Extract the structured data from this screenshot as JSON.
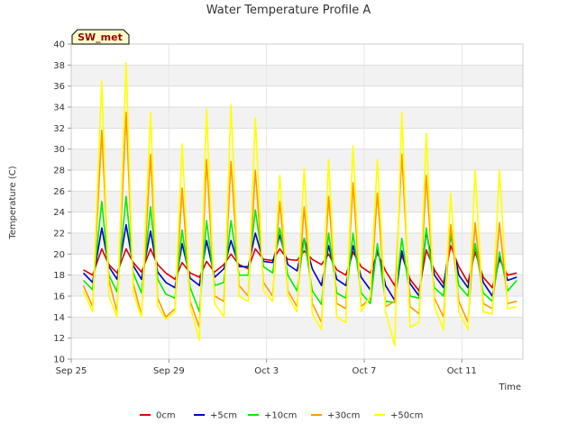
{
  "chart_data": {
    "type": "line",
    "title": "Water Temperature Profile A",
    "site_label": "SW_met",
    "xlabel": "Time",
    "ylabel": "Temperature (C)",
    "ylim": [
      10,
      40
    ],
    "yticks": [
      10,
      12,
      14,
      16,
      18,
      20,
      22,
      24,
      26,
      28,
      30,
      32,
      34,
      36,
      38,
      40
    ],
    "xlim": [
      "2018-09-25",
      "2018-10-13T12:00"
    ],
    "xticks": [
      {
        "label": "Sep 25",
        "date": "2018-09-25"
      },
      {
        "label": "Sep 29",
        "date": "2018-09-29"
      },
      {
        "label": "Oct 3",
        "date": "2018-10-03"
      },
      {
        "label": "Oct 7",
        "date": "2018-10-07"
      },
      {
        "label": "Oct 11",
        "date": "2018-10-11"
      }
    ],
    "grid": true,
    "legend_position": "bottom",
    "series": [
      {
        "name": "0cm",
        "color": "#dd0000",
        "x": [
          "2018-09-25T12:00",
          "2018-09-25T21:00",
          "2018-09-26T06:00",
          "2018-09-26T13:00",
          "2018-09-26T21:00",
          "2018-09-27T06:00",
          "2018-09-27T13:00",
          "2018-09-27T21:00",
          "2018-09-28T06:00",
          "2018-09-28T13:00",
          "2018-09-28T21:00",
          "2018-09-29T06:00",
          "2018-09-29T13:00",
          "2018-09-29T21:00",
          "2018-09-30T06:00",
          "2018-09-30T13:00",
          "2018-09-30T21:00",
          "2018-10-01T06:00",
          "2018-10-01T13:00",
          "2018-10-01T21:00",
          "2018-10-02T06:00",
          "2018-10-02T13:00",
          "2018-10-02T21:00",
          "2018-10-03T06:00",
          "2018-10-03T13:00",
          "2018-10-03T21:00",
          "2018-10-04T06:00",
          "2018-10-04T13:00",
          "2018-10-04T21:00",
          "2018-10-05T06:00",
          "2018-10-05T13:00",
          "2018-10-05T21:00",
          "2018-10-06T06:00",
          "2018-10-06T13:00",
          "2018-10-06T21:00",
          "2018-10-07T06:00",
          "2018-10-07T13:00",
          "2018-10-07T21:00",
          "2018-10-08T06:00",
          "2018-10-08T13:00",
          "2018-10-08T21:00",
          "2018-10-09T06:00",
          "2018-10-09T13:00",
          "2018-10-09T21:00",
          "2018-10-10T06:00",
          "2018-10-10T13:00",
          "2018-10-10T21:00",
          "2018-10-11T06:00",
          "2018-10-11T13:00",
          "2018-10-11T21:00",
          "2018-10-12T06:00",
          "2018-10-12T13:00",
          "2018-10-12T21:00",
          "2018-10-13T06:00"
        ],
        "values": [
          18.5,
          18.0,
          20.5,
          19.0,
          18.2,
          20.5,
          19.2,
          18.3,
          20.5,
          19.0,
          18.2,
          17.6,
          19.2,
          18.2,
          17.8,
          19.3,
          18.3,
          19.0,
          20.0,
          19.0,
          18.6,
          20.5,
          19.5,
          19.4,
          20.5,
          19.5,
          19.4,
          20.3,
          19.5,
          19.0,
          20.0,
          18.5,
          18.0,
          20.2,
          18.8,
          18.2,
          20.1,
          18.4,
          17.0,
          19.9,
          17.6,
          16.5,
          20.4,
          18.5,
          17.2,
          20.8,
          18.8,
          17.3,
          20.2,
          17.8,
          16.8,
          19.5,
          18.0,
          18.2
        ]
      },
      {
        "name": "+5cm",
        "color": "#0000cc",
        "x": [
          "2018-09-25T12:00",
          "2018-09-25T21:00",
          "2018-09-26T06:00",
          "2018-09-26T13:00",
          "2018-09-26T21:00",
          "2018-09-27T06:00",
          "2018-09-27T13:00",
          "2018-09-27T21:00",
          "2018-09-28T06:00",
          "2018-09-28T13:00",
          "2018-09-28T21:00",
          "2018-09-29T06:00",
          "2018-09-29T13:00",
          "2018-09-29T21:00",
          "2018-09-30T06:00",
          "2018-09-30T13:00",
          "2018-09-30T21:00",
          "2018-10-01T06:00",
          "2018-10-01T13:00",
          "2018-10-01T21:00",
          "2018-10-02T06:00",
          "2018-10-02T13:00",
          "2018-10-02T21:00",
          "2018-10-03T06:00",
          "2018-10-03T13:00",
          "2018-10-03T21:00",
          "2018-10-04T06:00",
          "2018-10-04T13:00",
          "2018-10-04T21:00",
          "2018-10-05T06:00",
          "2018-10-05T13:00",
          "2018-10-05T21:00",
          "2018-10-06T06:00",
          "2018-10-06T13:00",
          "2018-10-06T21:00",
          "2018-10-07T06:00",
          "2018-10-07T13:00",
          "2018-10-07T21:00",
          "2018-10-08T06:00",
          "2018-10-08T13:00",
          "2018-10-08T21:00",
          "2018-10-09T06:00",
          "2018-10-09T13:00",
          "2018-10-09T21:00",
          "2018-10-10T06:00",
          "2018-10-10T13:00",
          "2018-10-10T21:00",
          "2018-10-11T06:00",
          "2018-10-11T13:00",
          "2018-10-11T21:00",
          "2018-10-12T06:00",
          "2018-10-12T13:00",
          "2018-10-12T21:00",
          "2018-10-13T06:00"
        ],
        "values": [
          18.2,
          17.3,
          22.5,
          18.8,
          17.6,
          22.8,
          18.9,
          17.6,
          22.2,
          18.3,
          17.3,
          16.8,
          21.0,
          17.7,
          17.0,
          21.3,
          17.8,
          18.6,
          21.3,
          18.8,
          18.8,
          22.0,
          19.3,
          19.2,
          21.8,
          19.0,
          18.4,
          21.5,
          18.6,
          17.0,
          20.8,
          17.6,
          17.0,
          20.8,
          17.8,
          16.6,
          20.6,
          17.0,
          15.6,
          20.3,
          17.2,
          16.0,
          22.2,
          18.0,
          16.8,
          21.8,
          18.0,
          16.8,
          20.8,
          17.3,
          16.0,
          19.8,
          17.5,
          17.8
        ]
      },
      {
        "name": "+10cm",
        "color": "#00ee00",
        "x": [
          "2018-09-25T12:00",
          "2018-09-25T21:00",
          "2018-09-26T06:00",
          "2018-09-26T13:00",
          "2018-09-26T21:00",
          "2018-09-27T06:00",
          "2018-09-27T13:00",
          "2018-09-27T21:00",
          "2018-09-28T06:00",
          "2018-09-28T13:00",
          "2018-09-28T21:00",
          "2018-09-29T06:00",
          "2018-09-29T13:00",
          "2018-09-29T21:00",
          "2018-09-30T06:00",
          "2018-09-30T13:00",
          "2018-09-30T21:00",
          "2018-10-01T06:00",
          "2018-10-01T13:00",
          "2018-10-01T21:00",
          "2018-10-02T06:00",
          "2018-10-02T13:00",
          "2018-10-02T21:00",
          "2018-10-03T06:00",
          "2018-10-03T13:00",
          "2018-10-03T21:00",
          "2018-10-04T06:00",
          "2018-10-04T13:00",
          "2018-10-04T21:00",
          "2018-10-05T06:00",
          "2018-10-05T13:00",
          "2018-10-05T21:00",
          "2018-10-06T06:00",
          "2018-10-06T13:00",
          "2018-10-06T21:00",
          "2018-10-07T06:00",
          "2018-10-07T13:00",
          "2018-10-07T21:00",
          "2018-10-08T06:00",
          "2018-10-08T13:00",
          "2018-10-08T21:00",
          "2018-10-09T06:00",
          "2018-10-09T13:00",
          "2018-10-09T21:00",
          "2018-10-10T06:00",
          "2018-10-10T13:00",
          "2018-10-10T21:00",
          "2018-10-11T06:00",
          "2018-10-11T13:00",
          "2018-10-11T21:00",
          "2018-10-12T06:00",
          "2018-10-12T13:00",
          "2018-10-12T21:00",
          "2018-10-13T06:00"
        ],
        "values": [
          17.5,
          16.6,
          25.0,
          18.0,
          16.4,
          25.5,
          18.2,
          16.3,
          24.5,
          17.6,
          16.2,
          15.8,
          22.3,
          16.8,
          14.5,
          23.2,
          17.0,
          17.3,
          23.2,
          18.0,
          18.0,
          24.2,
          18.8,
          18.2,
          22.5,
          18.0,
          16.5,
          21.5,
          16.5,
          15.2,
          22.0,
          16.3,
          15.8,
          22.0,
          16.3,
          15.3,
          21.0,
          15.5,
          15.4,
          21.5,
          16.0,
          15.8,
          22.5,
          16.8,
          16.0,
          22.0,
          17.0,
          16.0,
          21.0,
          16.3,
          15.5,
          20.2,
          16.5,
          17.5
        ]
      },
      {
        "name": "+30cm",
        "color": "#ff9900",
        "x": [
          "2018-09-25T12:00",
          "2018-09-25T21:00",
          "2018-09-26T06:00",
          "2018-09-26T13:00",
          "2018-09-26T21:00",
          "2018-09-27T06:00",
          "2018-09-27T13:00",
          "2018-09-27T21:00",
          "2018-09-28T06:00",
          "2018-09-28T13:00",
          "2018-09-28T21:00",
          "2018-09-29T06:00",
          "2018-09-29T13:00",
          "2018-09-29T21:00",
          "2018-09-30T06:00",
          "2018-09-30T13:00",
          "2018-09-30T21:00",
          "2018-10-01T06:00",
          "2018-10-01T13:00",
          "2018-10-01T21:00",
          "2018-10-02T06:00",
          "2018-10-02T13:00",
          "2018-10-02T21:00",
          "2018-10-03T06:00",
          "2018-10-03T13:00",
          "2018-10-03T21:00",
          "2018-10-04T06:00",
          "2018-10-04T13:00",
          "2018-10-04T21:00",
          "2018-10-05T06:00",
          "2018-10-05T13:00",
          "2018-10-05T21:00",
          "2018-10-06T06:00",
          "2018-10-06T13:00",
          "2018-10-06T21:00",
          "2018-10-07T06:00",
          "2018-10-07T13:00",
          "2018-10-07T21:00",
          "2018-10-08T06:00",
          "2018-10-08T13:00",
          "2018-10-08T21:00",
          "2018-10-09T06:00",
          "2018-10-09T13:00",
          "2018-10-09T21:00",
          "2018-10-10T06:00",
          "2018-10-10T13:00",
          "2018-10-10T21:00",
          "2018-10-11T06:00",
          "2018-10-11T13:00",
          "2018-10-11T21:00",
          "2018-10-12T06:00",
          "2018-10-12T13:00",
          "2018-10-12T21:00",
          "2018-10-13T06:00"
        ],
        "values": [
          17.0,
          15.0,
          31.8,
          17.5,
          14.5,
          33.5,
          17.2,
          14.2,
          29.5,
          15.8,
          14.0,
          14.8,
          26.3,
          15.5,
          13.0,
          29.0,
          16.0,
          15.5,
          28.8,
          17.0,
          16.0,
          28.0,
          17.3,
          16.0,
          25.0,
          16.5,
          15.0,
          24.5,
          15.3,
          13.5,
          25.5,
          15.3,
          14.8,
          26.8,
          15.0,
          15.8,
          25.8,
          15.0,
          15.5,
          29.5,
          15.0,
          14.3,
          27.5,
          15.8,
          14.0,
          22.8,
          15.5,
          13.5,
          23.0,
          15.3,
          14.8,
          23.0,
          15.3,
          15.5
        ]
      },
      {
        "name": "+50cm",
        "color": "#ffff00",
        "x": [
          "2018-09-25T12:00",
          "2018-09-25T21:00",
          "2018-09-26T06:00",
          "2018-09-26T13:00",
          "2018-09-26T21:00",
          "2018-09-27T06:00",
          "2018-09-27T13:00",
          "2018-09-27T21:00",
          "2018-09-28T06:00",
          "2018-09-28T13:00",
          "2018-09-28T21:00",
          "2018-09-29T06:00",
          "2018-09-29T13:00",
          "2018-09-29T21:00",
          "2018-09-30T06:00",
          "2018-09-30T13:00",
          "2018-09-30T21:00",
          "2018-10-01T06:00",
          "2018-10-01T13:00",
          "2018-10-01T21:00",
          "2018-10-02T06:00",
          "2018-10-02T13:00",
          "2018-10-02T21:00",
          "2018-10-03T06:00",
          "2018-10-03T13:00",
          "2018-10-03T21:00",
          "2018-10-04T06:00",
          "2018-10-04T13:00",
          "2018-10-04T21:00",
          "2018-10-05T06:00",
          "2018-10-05T13:00",
          "2018-10-05T21:00",
          "2018-10-06T06:00",
          "2018-10-06T13:00",
          "2018-10-06T21:00",
          "2018-10-07T06:00",
          "2018-10-07T13:00",
          "2018-10-07T21:00",
          "2018-10-08T06:00",
          "2018-10-08T13:00",
          "2018-10-08T21:00",
          "2018-10-09T06:00",
          "2018-10-09T13:00",
          "2018-10-09T21:00",
          "2018-10-10T06:00",
          "2018-10-10T13:00",
          "2018-10-10T21:00",
          "2018-10-11T06:00",
          "2018-10-11T13:00",
          "2018-10-11T21:00",
          "2018-10-12T06:00",
          "2018-10-12T13:00",
          "2018-10-12T21:00",
          "2018-10-13T06:00"
        ],
        "values": [
          16.5,
          14.5,
          36.5,
          16.0,
          14.0,
          38.2,
          16.3,
          14.0,
          33.5,
          15.0,
          13.8,
          14.5,
          30.5,
          15.0,
          11.8,
          33.8,
          15.3,
          14.0,
          34.2,
          16.0,
          15.5,
          33.0,
          16.5,
          15.5,
          27.5,
          16.0,
          14.5,
          28.2,
          14.3,
          12.8,
          29.0,
          14.0,
          13.5,
          30.3,
          14.5,
          16.0,
          29.0,
          14.5,
          11.3,
          33.5,
          13.0,
          13.5,
          31.5,
          15.0,
          12.8,
          25.8,
          14.5,
          12.8,
          28.0,
          14.5,
          14.3,
          28.0,
          14.8,
          15.0
        ]
      }
    ]
  }
}
